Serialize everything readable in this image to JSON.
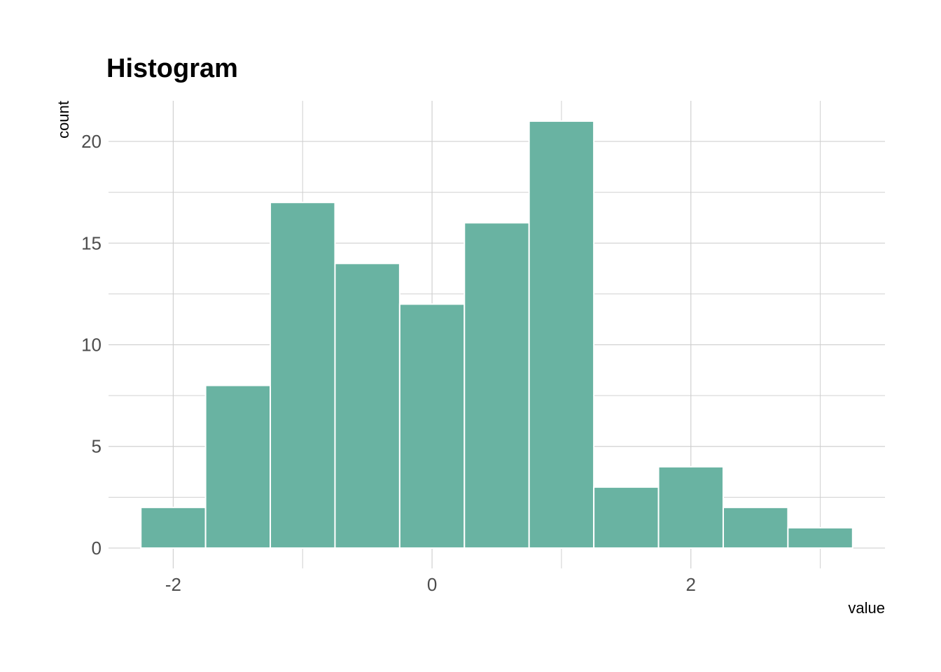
{
  "chart_data": {
    "type": "bar",
    "title": "Histogram",
    "xlabel": "value",
    "ylabel": "count",
    "bin_width": 0.5,
    "bins": [
      {
        "start": -2.25,
        "end": -1.75,
        "count": 2
      },
      {
        "start": -1.75,
        "end": -1.25,
        "count": 8
      },
      {
        "start": -1.25,
        "end": -0.75,
        "count": 17
      },
      {
        "start": -0.75,
        "end": -0.25,
        "count": 14
      },
      {
        "start": -0.25,
        "end": 0.25,
        "count": 12
      },
      {
        "start": 0.25,
        "end": 0.75,
        "count": 16
      },
      {
        "start": 0.75,
        "end": 1.25,
        "count": 21
      },
      {
        "start": 1.25,
        "end": 1.75,
        "count": 3
      },
      {
        "start": 1.75,
        "end": 2.25,
        "count": 4
      },
      {
        "start": 2.25,
        "end": 2.75,
        "count": 2
      },
      {
        "start": 2.75,
        "end": 3.25,
        "count": 1
      }
    ],
    "xlim": [
      -2.5,
      3.5
    ],
    "ylim": [
      -1,
      22
    ],
    "x_ticks": [
      -2,
      0,
      2
    ],
    "x_tick_labels": [
      "-2",
      "0",
      "2"
    ],
    "x_minor_ticks": [
      -1,
      1,
      3
    ],
    "y_ticks": [
      0,
      5,
      10,
      15,
      20
    ],
    "y_tick_labels": [
      "0",
      "5",
      "10",
      "15",
      "20"
    ],
    "y_minor_ticks": [
      2.5,
      7.5,
      12.5,
      17.5
    ],
    "grid": true,
    "legend": "none",
    "colors": {
      "bar_fill": "#69b3a2",
      "bar_outline": "#ffffff",
      "grid": "#d0d0d0"
    }
  }
}
